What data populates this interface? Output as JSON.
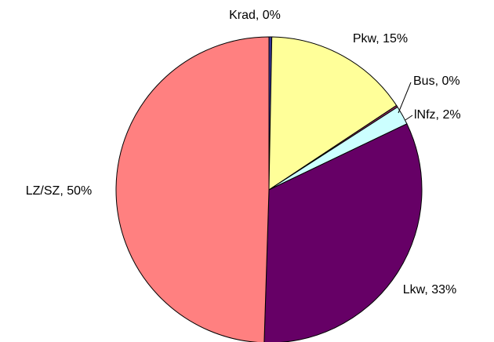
{
  "chart_data": {
    "type": "pie",
    "values": [
      0.3,
      15.4,
      0.2,
      2.0,
      32.6,
      49.5
    ],
    "value_labels": [
      "Krad, 0%",
      "Pkw, 15%",
      "Bus, 0%",
      "lNfz, 2%",
      "Lkw, 33%",
      "LZ/SZ, 50%"
    ],
    "colors": [
      "#333399",
      "#ffff99",
      "#993366",
      "#ccffff",
      "#660066",
      "#ff8080"
    ]
  }
}
